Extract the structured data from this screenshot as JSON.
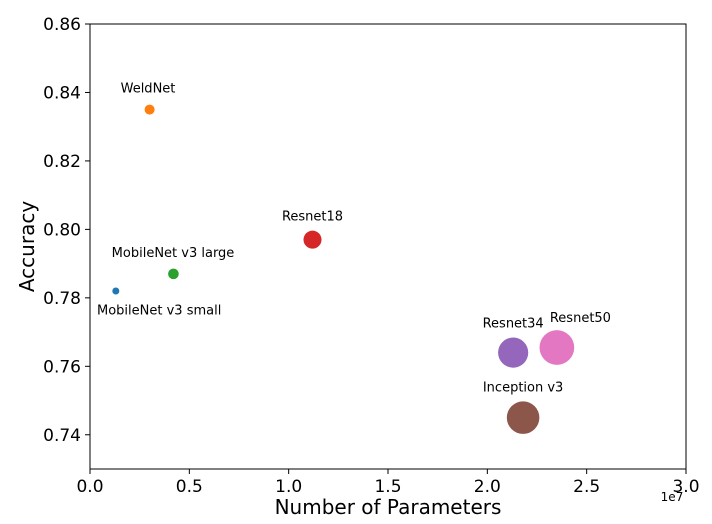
{
  "chart_data": {
    "type": "scatter",
    "title": "",
    "xlabel": "Number of Parameters",
    "ylabel": "Accuracy",
    "x_offset_label": "1e7",
    "x_tick_labels": [
      "0.0",
      "0.5",
      "1.0",
      "1.5",
      "2.0",
      "2.5",
      "3.0"
    ],
    "y_tick_labels": [
      "0.74",
      "0.76",
      "0.78",
      "0.80",
      "0.82",
      "0.84",
      "0.86"
    ],
    "xlim": [
      0.0,
      3.0
    ],
    "ylim": [
      0.73,
      0.86
    ],
    "grid": false,
    "legend": "none",
    "points": [
      {
        "label": "WeldNet",
        "x": 0.3,
        "y": 0.835,
        "size": 5,
        "color": "#ff7f0e",
        "label_pos": "above"
      },
      {
        "label": "MobileNet v3 small",
        "x": 0.13,
        "y": 0.782,
        "size": 2.5,
        "color": "#1f77b4",
        "label_pos": "below"
      },
      {
        "label": "MobileNet v3 large",
        "x": 0.42,
        "y": 0.787,
        "size": 5.5,
        "color": "#2ca02c",
        "label_pos": "above"
      },
      {
        "label": "Resnet18",
        "x": 1.12,
        "y": 0.797,
        "size": 11.7,
        "color": "#d62728",
        "label_pos": "above"
      },
      {
        "label": "Resnet34",
        "x": 2.13,
        "y": 0.764,
        "size": 21.8,
        "color": "#9467bd",
        "label_pos": "above"
      },
      {
        "label": "Resnet50",
        "x": 2.35,
        "y": 0.7655,
        "size": 25.6,
        "color": "#e377c2",
        "label_pos": "above-right"
      },
      {
        "label": "Inception v3",
        "x": 2.18,
        "y": 0.745,
        "size": 23.8,
        "color": "#8c564b",
        "label_pos": "above"
      }
    ]
  }
}
